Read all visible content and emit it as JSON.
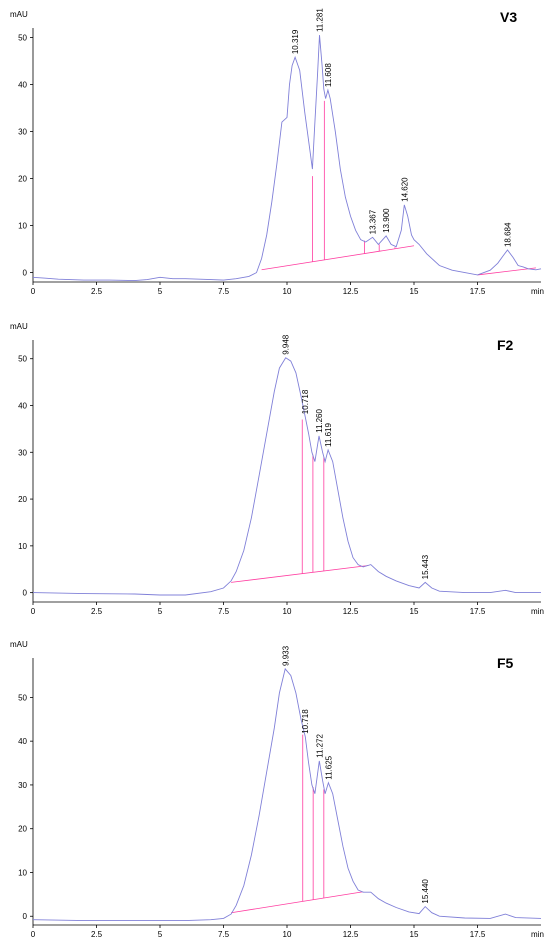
{
  "chart_data": [
    {
      "type": "line",
      "title": "V3",
      "ylabel": "mAU",
      "xlabel": "min",
      "xlim": [
        0,
        20
      ],
      "ylim": [
        -2,
        52
      ],
      "xticks": [
        0,
        2.5,
        5,
        7.5,
        10,
        12.5,
        15,
        17.5
      ],
      "xtick_labels": [
        "0",
        "2.5",
        "5",
        "7.5",
        "10",
        "12.5",
        "15",
        "17.5"
      ],
      "yticks": [
        0,
        10,
        20,
        30,
        40,
        50
      ],
      "ytick_labels": [
        "0",
        "10",
        "20",
        "30",
        "40",
        "50"
      ],
      "series": [
        {
          "color": "#8080d8",
          "x": [
            0,
            0.5,
            1,
            2,
            3,
            4,
            4.5,
            5,
            5.5,
            6,
            7,
            7.5,
            8,
            8.5,
            8.8,
            9.0,
            9.2,
            9.4,
            9.6,
            9.8,
            10.0,
            10.1,
            10.2,
            10.32,
            10.5,
            10.7,
            10.9,
            11.0,
            11.1,
            11.2,
            11.28,
            11.38,
            11.45,
            11.52,
            11.61,
            11.7,
            11.9,
            12.1,
            12.3,
            12.5,
            12.7,
            12.9,
            13.1,
            13.37,
            13.6,
            13.9,
            14.1,
            14.3,
            14.5,
            14.62,
            14.75,
            14.9,
            15.0,
            15.2,
            15.5,
            16.0,
            16.5,
            17.0,
            17.5,
            18.0,
            18.3,
            18.5,
            18.68,
            18.9,
            19.1,
            19.3,
            19.5,
            19.8,
            20
          ],
          "y": [
            -1.0,
            -1.2,
            -1.4,
            -1.6,
            -1.6,
            -1.7,
            -1.5,
            -1.0,
            -1.3,
            -1.3,
            -1.5,
            -1.6,
            -1.3,
            -0.8,
            0,
            3,
            8,
            15,
            23,
            32,
            33,
            40,
            44,
            45.8,
            43,
            34,
            26,
            22,
            32,
            42,
            50.5,
            44,
            39,
            37,
            38.8,
            37,
            30,
            22,
            16,
            12,
            9,
            7,
            6.5,
            7.5,
            6.0,
            7.8,
            6.0,
            5.5,
            9.0,
            14.4,
            12,
            8,
            7.0,
            6.0,
            4.0,
            1.5,
            0.5,
            0,
            -0.5,
            0.5,
            2.0,
            3.5,
            4.8,
            3.2,
            1.5,
            1.2,
            0.8,
            0.6,
            0.8
          ]
        }
      ],
      "baselines": [
        [
          9.0,
          0.6,
          15.0,
          5.7
        ],
        [
          17.5,
          -0.5,
          19.8,
          1.0
        ]
      ],
      "drop_lines": [
        [
          11.0,
          20.5
        ],
        [
          11.47,
          36.5
        ],
        [
          13.05,
          6.8
        ],
        [
          13.63,
          6.0
        ],
        [
          14.25,
          5.4
        ]
      ],
      "peak_labels": [
        {
          "x": 10.319,
          "y": 45.8,
          "label": "10.319"
        },
        {
          "x": 11.281,
          "y": 50.5,
          "label": "11.281"
        },
        {
          "x": 11.608,
          "y": 38.8,
          "label": "11.608"
        },
        {
          "x": 13.367,
          "y": 7.5,
          "label": "13.367"
        },
        {
          "x": 13.9,
          "y": 7.8,
          "label": "13.900"
        },
        {
          "x": 14.62,
          "y": 14.4,
          "label": "14.620"
        },
        {
          "x": 18.684,
          "y": 4.8,
          "label": "18.684"
        }
      ]
    },
    {
      "type": "line",
      "title": "F2",
      "ylabel": "mAU",
      "xlabel": "min",
      "xlim": [
        0,
        20
      ],
      "ylim": [
        -2,
        54
      ],
      "xticks": [
        0,
        2.5,
        5,
        7.5,
        10,
        12.5,
        15,
        17.5
      ],
      "xtick_labels": [
        "0",
        "2.5",
        "5",
        "7.5",
        "10",
        "12.5",
        "15",
        "17.5"
      ],
      "yticks": [
        0,
        10,
        20,
        30,
        40,
        50
      ],
      "ytick_labels": [
        "0",
        "10",
        "20",
        "30",
        "40",
        "50"
      ],
      "series": [
        {
          "color": "#8080d8",
          "x": [
            0,
            2,
            4,
            5,
            6,
            7,
            7.5,
            7.8,
            8.0,
            8.3,
            8.6,
            8.9,
            9.2,
            9.5,
            9.7,
            9.95,
            10.15,
            10.35,
            10.55,
            10.72,
            10.85,
            10.98,
            11.1,
            11.26,
            11.4,
            11.5,
            11.62,
            11.8,
            12.0,
            12.2,
            12.4,
            12.6,
            12.8,
            13.0,
            13.3,
            13.6,
            13.9,
            14.3,
            14.8,
            15.2,
            15.44,
            15.7,
            16.0,
            17.0,
            18.0,
            18.6,
            19.0,
            20
          ],
          "y": [
            0,
            -0.2,
            -0.3,
            -0.5,
            -0.5,
            0.2,
            1.0,
            2.5,
            4.5,
            9,
            16,
            25,
            34,
            43,
            48,
            50.2,
            49.5,
            47,
            42,
            37.5,
            34,
            30,
            28,
            33.5,
            30,
            28,
            30.5,
            28,
            22,
            16,
            11,
            7.5,
            6,
            5.5,
            6.0,
            4.5,
            3.5,
            2.5,
            1.5,
            1.0,
            2.2,
            1.0,
            0.3,
            0,
            0,
            0.5,
            0,
            0
          ]
        }
      ],
      "baselines": [
        [
          7.8,
          2.2,
          13.2,
          5.8
        ]
      ],
      "drop_lines": [
        [
          10.6,
          37.0
        ],
        [
          11.02,
          29.5
        ],
        [
          11.45,
          29.0
        ]
      ],
      "peak_labels": [
        {
          "x": 9.948,
          "y": 50.2,
          "label": "9.948"
        },
        {
          "x": 10.718,
          "y": 37.5,
          "label": "10.718"
        },
        {
          "x": 11.26,
          "y": 33.5,
          "label": "11.260"
        },
        {
          "x": 11.619,
          "y": 30.5,
          "label": "11.619"
        },
        {
          "x": 15.443,
          "y": 2.2,
          "label": "15.443"
        }
      ]
    },
    {
      "type": "line",
      "title": "F5",
      "ylabel": "mAU",
      "xlabel": "min",
      "xlim": [
        0,
        20
      ],
      "ylim": [
        -2,
        59
      ],
      "xticks": [
        0,
        2.5,
        5,
        7.5,
        10,
        12.5,
        15,
        17.5
      ],
      "xtick_labels": [
        "0",
        "2.5",
        "5",
        "7.5",
        "10",
        "12.5",
        "15",
        "17.5"
      ],
      "yticks": [
        0,
        10,
        20,
        30,
        40,
        50
      ],
      "ytick_labels": [
        "0",
        "10",
        "20",
        "30",
        "40",
        "50"
      ],
      "series": [
        {
          "color": "#8080d8",
          "x": [
            0,
            2,
            4,
            5,
            6,
            7,
            7.5,
            7.8,
            8.0,
            8.3,
            8.6,
            8.9,
            9.2,
            9.5,
            9.7,
            9.93,
            10.15,
            10.35,
            10.55,
            10.72,
            10.85,
            10.98,
            11.1,
            11.27,
            11.4,
            11.5,
            11.63,
            11.8,
            12.0,
            12.2,
            12.4,
            12.6,
            12.8,
            13.0,
            13.3,
            13.6,
            13.9,
            14.3,
            14.8,
            15.2,
            15.44,
            15.7,
            16.0,
            17.0,
            18.0,
            18.6,
            19.0,
            20
          ],
          "y": [
            -0.8,
            -1.0,
            -1.0,
            -1.0,
            -1.0,
            -0.8,
            -0.5,
            0.5,
            2.5,
            7,
            14,
            23,
            33,
            43,
            51,
            56.5,
            55,
            51,
            45,
            41,
            35,
            30,
            28,
            35.5,
            31,
            28,
            30.5,
            28,
            22,
            16,
            11,
            8,
            6,
            5.5,
            5.5,
            4,
            3,
            2,
            1,
            0.6,
            2.2,
            0.8,
            0,
            -0.4,
            -0.5,
            0.5,
            -0.3,
            -0.5
          ]
        }
      ],
      "baselines": [
        [
          7.8,
          0.8,
          13.0,
          5.6
        ]
      ],
      "drop_lines": [
        [
          10.62,
          41.5
        ],
        [
          11.03,
          29.5
        ],
        [
          11.45,
          29.0
        ]
      ],
      "peak_labels": [
        {
          "x": 9.933,
          "y": 56.5,
          "label": "9.933"
        },
        {
          "x": 10.718,
          "y": 41.0,
          "label": "10.718"
        },
        {
          "x": 11.272,
          "y": 35.5,
          "label": "11.272"
        },
        {
          "x": 11.625,
          "y": 30.5,
          "label": "11.625"
        },
        {
          "x": 15.44,
          "y": 2.2,
          "label": "15.440"
        }
      ]
    }
  ],
  "colors": {
    "trace": "#8080d8",
    "integration": "#ff3ca0",
    "axis": "#000000"
  }
}
